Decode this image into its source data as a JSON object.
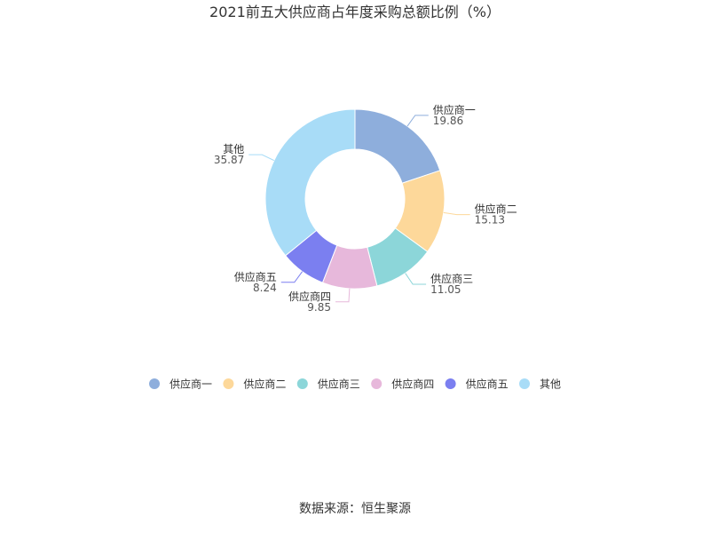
{
  "chart_data": {
    "type": "pie",
    "variant": "donut",
    "title": "2021前五大供应商占年度采购总额比例（%）",
    "categories": [
      "供应商一",
      "供应商二",
      "供应商三",
      "供应商四",
      "供应商五",
      "其他"
    ],
    "values": [
      19.86,
      15.13,
      11.05,
      9.85,
      8.24,
      35.87
    ],
    "colors": [
      "#8eaedc",
      "#fdd89a",
      "#8cd6d9",
      "#e7b8db",
      "#7b7ff0",
      "#a8dcf7"
    ],
    "legend": {
      "placement": "bottom",
      "entries": [
        "供应商一",
        "供应商二",
        "供应商三",
        "供应商四",
        "供应商五",
        "其他"
      ]
    }
  },
  "footer": {
    "source": "数据来源：恒生聚源"
  }
}
